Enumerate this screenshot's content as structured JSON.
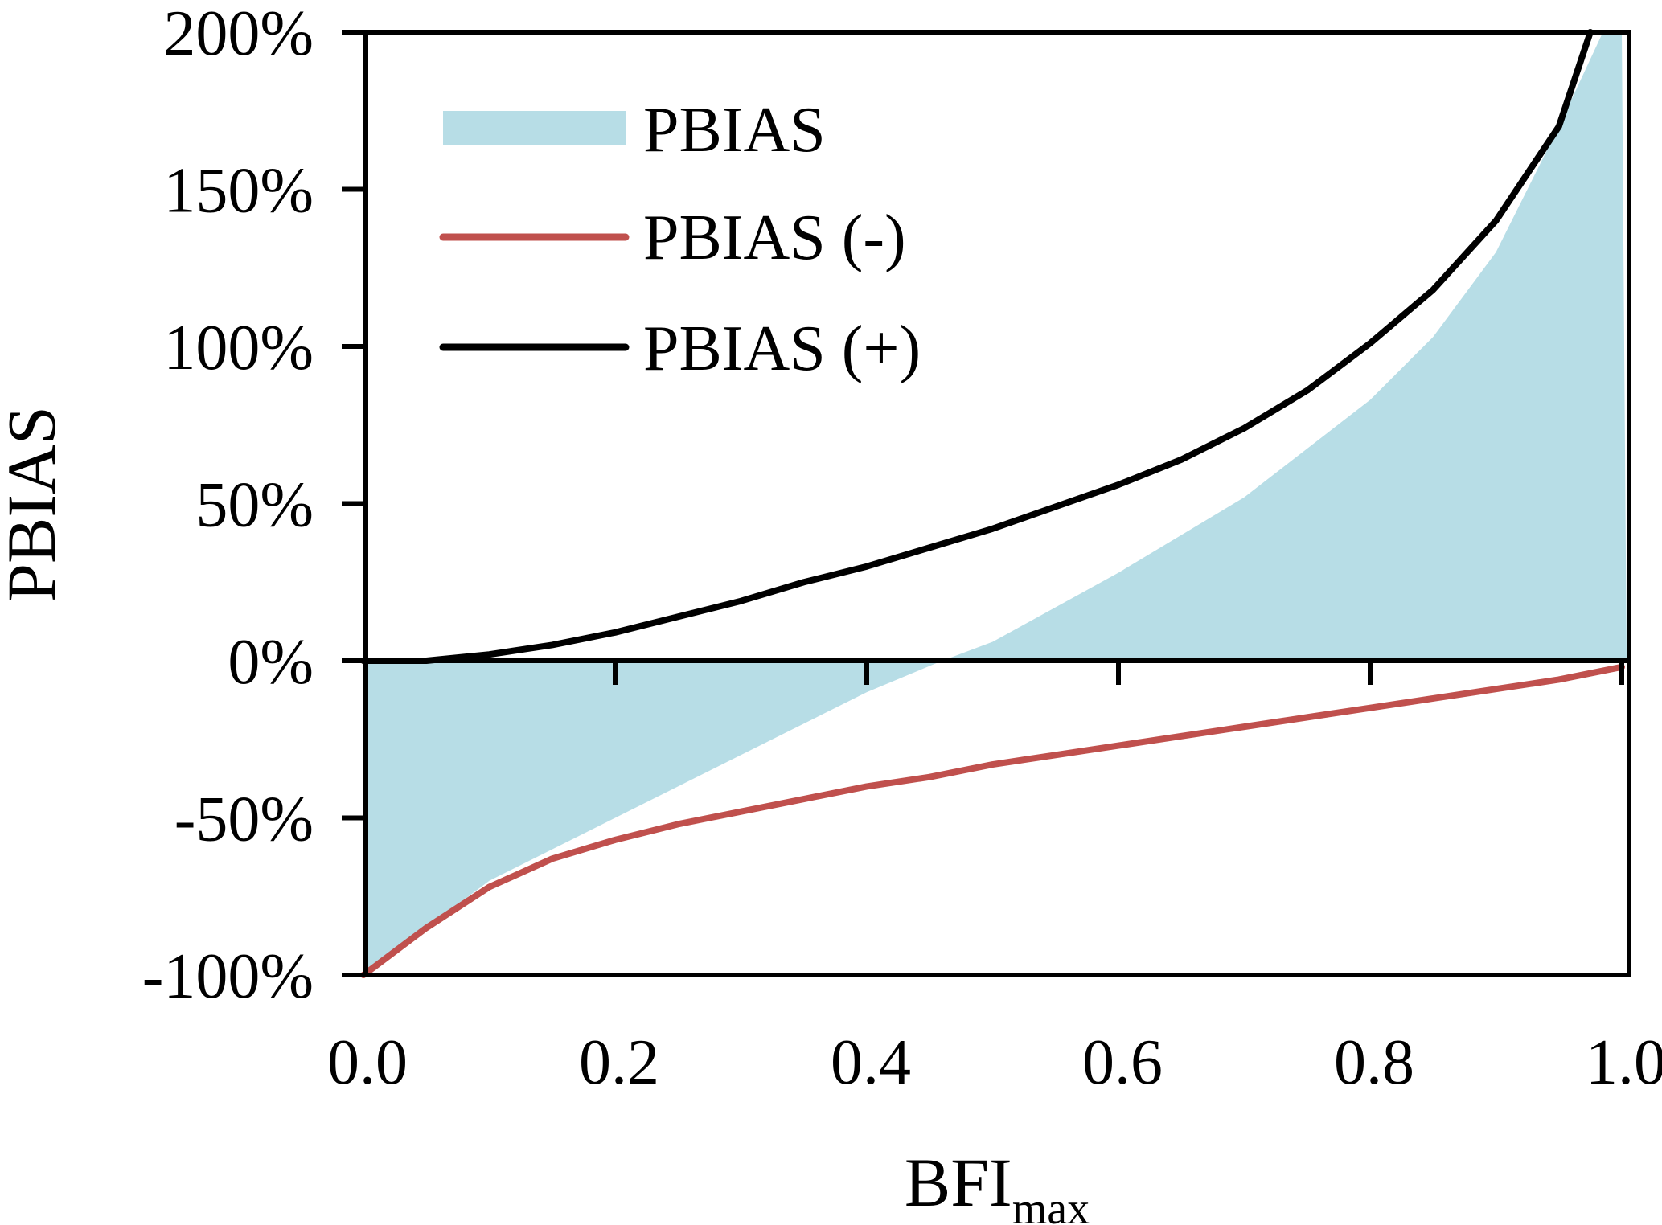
{
  "chart_data": {
    "type": "area",
    "title": "",
    "xlabel": "BFI",
    "xlabel_sub": "max",
    "ylabel": "PBIAS",
    "xlim": [
      0,
      1.0
    ],
    "ylim": [
      -100,
      200
    ],
    "xticks": [
      "0.0",
      "0.2",
      "0.4",
      "0.6",
      "0.8",
      "1.0"
    ],
    "xtick_values": [
      0,
      0.2,
      0.4,
      0.6,
      0.8,
      1.0
    ],
    "yticks": [
      "-100%",
      "-50%",
      "0%",
      "50%",
      "100%",
      "150%",
      "200%"
    ],
    "ytick_values": [
      -100,
      -50,
      0,
      50,
      100,
      150,
      200
    ],
    "grid": false,
    "legend_position": "top-left",
    "series": [
      {
        "name": "PBIAS",
        "kind": "area",
        "color": "#b7dde6",
        "x": [
          0,
          0.1,
          0.2,
          0.3,
          0.4,
          0.46,
          0.5,
          0.6,
          0.7,
          0.8,
          0.85,
          0.9,
          0.95,
          0.985,
          1.0
        ],
        "y": [
          -100,
          -70,
          -50,
          -30,
          -10,
          0,
          6,
          28,
          52,
          83,
          103,
          130,
          170,
          200,
          200
        ]
      },
      {
        "name": "PBIAS (-)",
        "kind": "line",
        "color": "#c0504d",
        "x": [
          0,
          0.05,
          0.1,
          0.15,
          0.2,
          0.25,
          0.3,
          0.35,
          0.4,
          0.45,
          0.5,
          0.55,
          0.6,
          0.65,
          0.7,
          0.75,
          0.8,
          0.85,
          0.9,
          0.95,
          1.0
        ],
        "y": [
          -100,
          -85,
          -72,
          -63,
          -57,
          -52,
          -48,
          -44,
          -40,
          -37,
          -33,
          -30,
          -27,
          -24,
          -21,
          -18,
          -15,
          -12,
          -9,
          -6,
          -2
        ]
      },
      {
        "name": "PBIAS (+)",
        "kind": "line",
        "color": "#000000",
        "x": [
          0,
          0.05,
          0.1,
          0.15,
          0.2,
          0.25,
          0.3,
          0.35,
          0.4,
          0.45,
          0.5,
          0.55,
          0.6,
          0.65,
          0.7,
          0.75,
          0.8,
          0.85,
          0.9,
          0.95,
          0.975
        ],
        "y": [
          0,
          0,
          2,
          5,
          9,
          14,
          19,
          25,
          30,
          36,
          42,
          49,
          56,
          64,
          74,
          86,
          101,
          118,
          140,
          170,
          200
        ]
      }
    ]
  }
}
